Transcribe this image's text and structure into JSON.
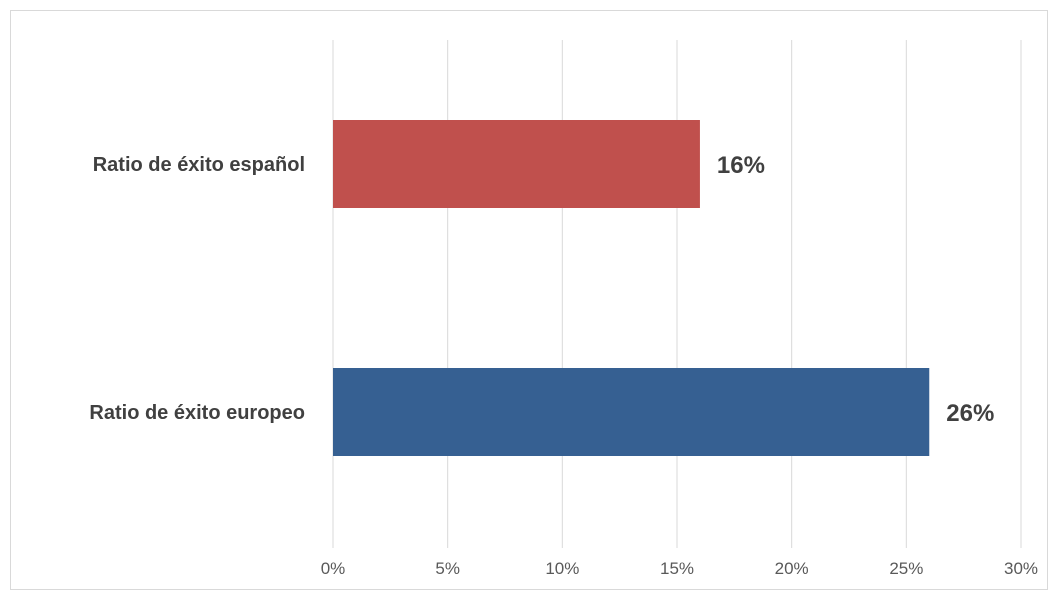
{
  "chart_data": {
    "type": "bar",
    "orientation": "horizontal",
    "categories": [
      "Ratio de éxito español",
      "Ratio de éxito europeo"
    ],
    "values": [
      16,
      26
    ],
    "value_labels": [
      "16%",
      "26%"
    ],
    "colors": [
      "#c0504d",
      "#366092"
    ],
    "xlim": [
      0,
      30
    ],
    "x_ticks": [
      0,
      5,
      10,
      15,
      20,
      25,
      30
    ],
    "x_tick_labels": [
      "0%",
      "5%",
      "10%",
      "15%",
      "20%",
      "25%",
      "30%"
    ],
    "grid": true,
    "legend": "none",
    "title": "",
    "xlabel": "",
    "ylabel": ""
  }
}
